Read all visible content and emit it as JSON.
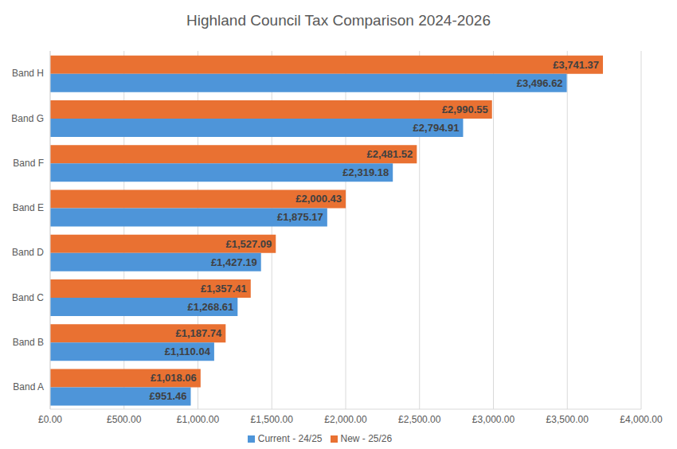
{
  "chart_data": {
    "type": "bar",
    "title": "Highland Council Tax Comparison 2024-2026",
    "orientation": "horizontal",
    "categories": [
      "Band A",
      "Band B",
      "Band C",
      "Band D",
      "Band E",
      "Band F",
      "Band G",
      "Band H"
    ],
    "series": [
      {
        "name": "New - 25/26",
        "color": "#e97132",
        "values": [
          1018.06,
          1187.74,
          1357.41,
          1527.09,
          2000.43,
          2481.52,
          2990.55,
          3741.37
        ],
        "value_labels": [
          "£1,018.06",
          "£1,187.74",
          "£1,357.41",
          "£1,527.09",
          "£2,000.43",
          "£2,481.52",
          "£2,990.55",
          "£3,741.37"
        ]
      },
      {
        "name": "Current - 24/25",
        "color": "#4e95d9",
        "values": [
          951.46,
          1110.04,
          1268.61,
          1427.19,
          1875.17,
          2319.18,
          2794.91,
          3496.62
        ],
        "value_labels": [
          "£951.46",
          "£1,110.04",
          "£1,268.61",
          "£1,427.19",
          "£1,875.17",
          "£2,319.18",
          "£2,794.91",
          "£3,496.62"
        ]
      }
    ],
    "xlim": [
      0,
      4000
    ],
    "xticks": [
      {
        "value": 0,
        "label": "£0.00"
      },
      {
        "value": 500,
        "label": "£500.00"
      },
      {
        "value": 1000,
        "label": "£1,000.00"
      },
      {
        "value": 1500,
        "label": "£1,500.00"
      },
      {
        "value": 2000,
        "label": "£2,000.00"
      },
      {
        "value": 2500,
        "label": "£2,500.00"
      },
      {
        "value": 3000,
        "label": "£3,000.00"
      },
      {
        "value": 3500,
        "label": "£3,500.00"
      },
      {
        "value": 4000,
        "label": "£4,000.00"
      }
    ],
    "grid": true,
    "data_labels": true,
    "legend": "bottom"
  }
}
